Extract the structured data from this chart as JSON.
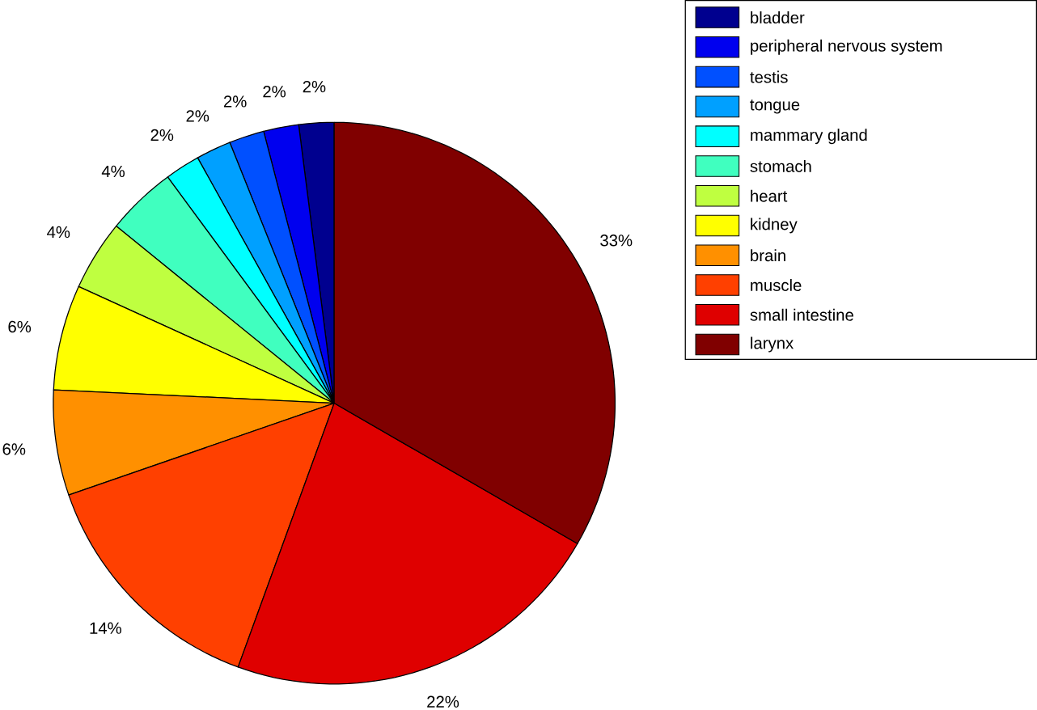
{
  "chart_data": {
    "type": "pie",
    "categories": [
      "bladder",
      "peripheral nervous system",
      "testis",
      "tongue",
      "mammary gland",
      "stomach",
      "heart",
      "kidney",
      "brain",
      "muscle",
      "small intestine",
      "larynx"
    ],
    "values": [
      2,
      2,
      2,
      2,
      2,
      4,
      4,
      6,
      6,
      14,
      22,
      33
    ],
    "value_labels": [
      "2%",
      "2%",
      "2%",
      "2%",
      "2%",
      "4%",
      "4%",
      "6%",
      "6%",
      "14%",
      "22%",
      "33%"
    ],
    "colors": [
      "#00008f",
      "#0000ef",
      "#0050ff",
      "#00a0ff",
      "#00ffff",
      "#40ffbf",
      "#bfff40",
      "#ffff00",
      "#ff9000",
      "#ff4000",
      "#df0000",
      "#800000"
    ],
    "legend": "top right"
  }
}
